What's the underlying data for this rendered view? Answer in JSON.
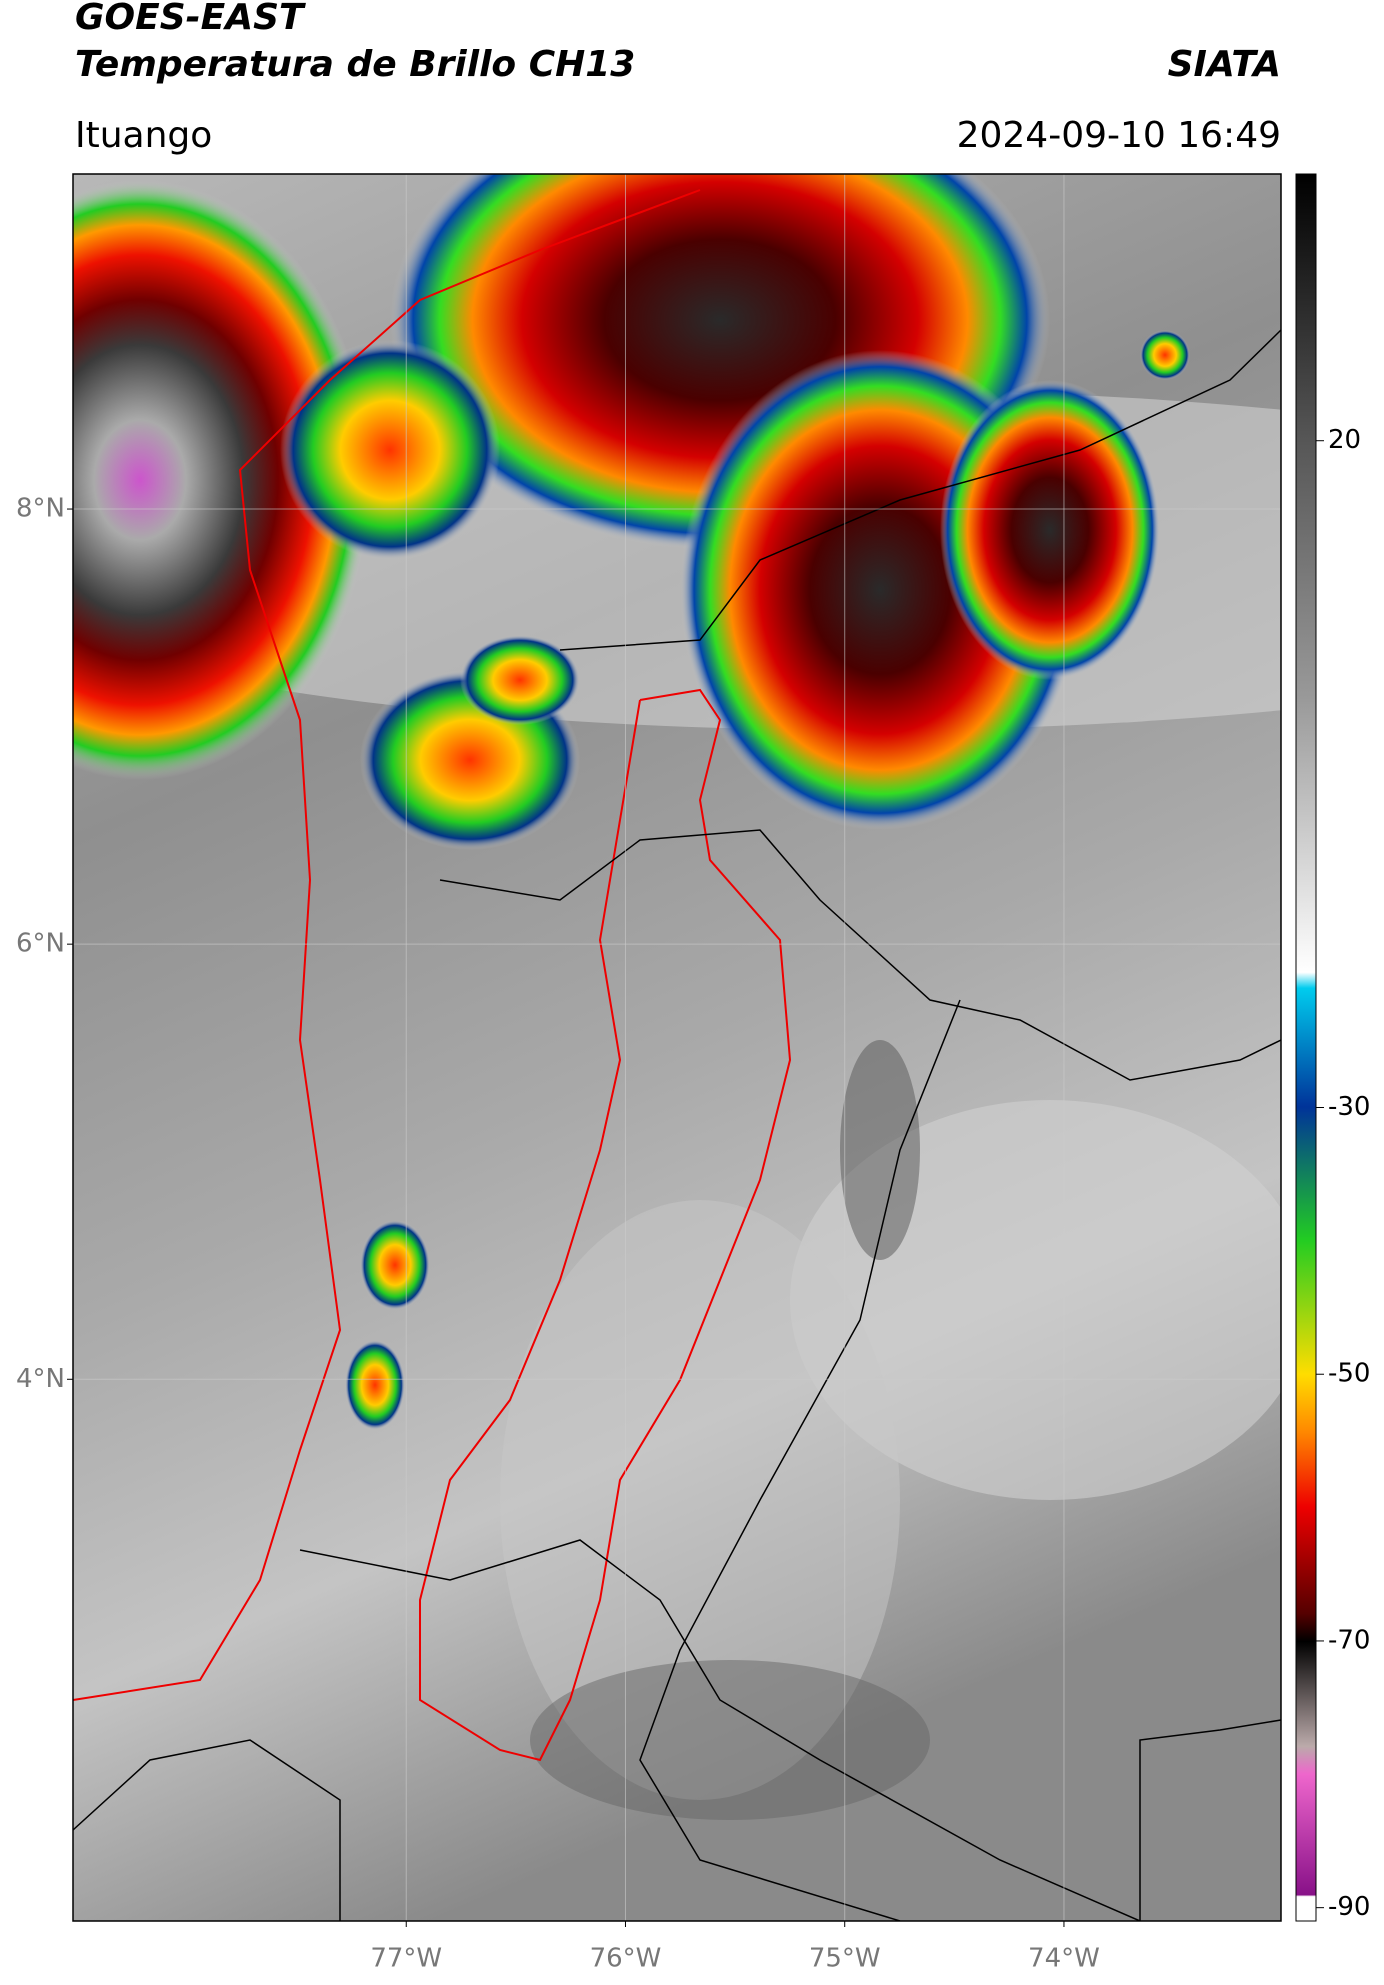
{
  "header": {
    "title": "GOES-EAST",
    "subtitle": "Temperatura de Brillo CH13",
    "brand": "SIATA",
    "location": "Ituango",
    "datetime": "2024-09-10 16:49"
  },
  "map": {
    "xlim": [
      -78.52,
      -73.01
    ],
    "ylim": [
      1.51,
      9.54
    ],
    "yticks": [
      {
        "value": 8,
        "label": "8°N"
      },
      {
        "value": 6,
        "label": "6°N"
      },
      {
        "value": 4,
        "label": "4°N"
      }
    ],
    "xticks": [
      {
        "value": -77,
        "label": "77°W"
      },
      {
        "value": -76,
        "label": "76°W"
      },
      {
        "value": -75,
        "label": "75°W"
      },
      {
        "value": -74,
        "label": "74°W"
      }
    ]
  },
  "colorbar": {
    "lim": [
      -91,
      40
    ],
    "ticks": [
      20,
      -30,
      -50,
      -70,
      -90
    ]
  }
}
